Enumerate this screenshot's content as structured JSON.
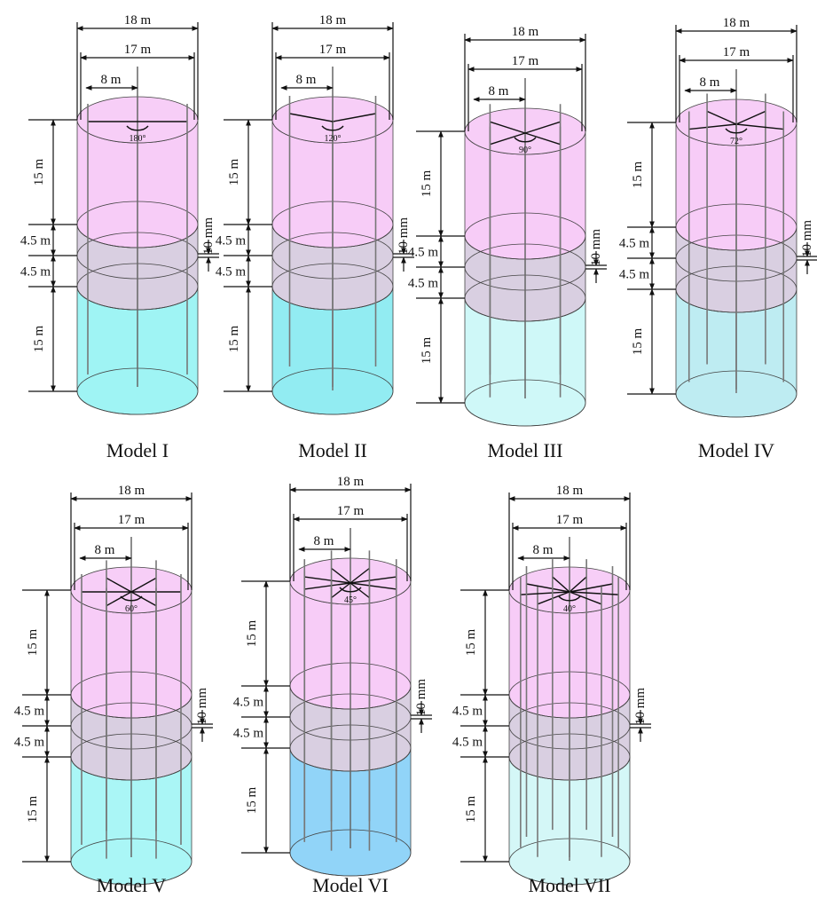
{
  "models": [
    {
      "caption": "Model I",
      "outer_diameter": "18 m",
      "inner_diameter": "17 m",
      "radius": "8 m",
      "angle": "180°",
      "upper_height": "15 m",
      "upper_band": "4.5 m",
      "lower_band": "4.5 m",
      "lower_height": "15 m",
      "gap": "10 mm"
    },
    {
      "caption": "Model II",
      "outer_diameter": "18 m",
      "inner_diameter": "17 m",
      "radius": "8 m",
      "angle": "120°",
      "upper_height": "15 m",
      "upper_band": "4.5 m",
      "lower_band": "4.5 m",
      "lower_height": "15 m",
      "gap": "10 mm"
    },
    {
      "caption": "Model III",
      "outer_diameter": "18 m",
      "inner_diameter": "17 m",
      "radius": "8 m",
      "angle": "90°",
      "upper_height": "15 m",
      "upper_band": "4.5 m",
      "lower_band": "4.5 m",
      "lower_height": "15 m",
      "gap": "10 mm"
    },
    {
      "caption": "Model IV",
      "outer_diameter": "18 m",
      "inner_diameter": "17 m",
      "radius": "8 m",
      "angle": "72°",
      "upper_height": "15 m",
      "upper_band": "4.5 m",
      "lower_band": "4.5 m",
      "lower_height": "15 m",
      "gap": "10 mm"
    },
    {
      "caption": "Model V",
      "outer_diameter": "18 m",
      "inner_diameter": "17 m",
      "radius": "8 m",
      "angle": "60°",
      "upper_height": "15 m",
      "upper_band": "4.5 m",
      "lower_band": "4.5 m",
      "lower_height": "15 m",
      "gap": "10 mm"
    },
    {
      "caption": "Model VI",
      "outer_diameter": "18 m",
      "inner_diameter": "17 m",
      "radius": "8 m",
      "angle": "45°",
      "upper_height": "15 m",
      "upper_band": "4.5 m",
      "lower_band": "4.5 m",
      "lower_height": "15 m",
      "gap": "10 mm"
    },
    {
      "caption": "Model VII",
      "outer_diameter": "18 m",
      "inner_diameter": "17 m",
      "radius": "8 m",
      "angle": "40°",
      "upper_height": "15 m",
      "upper_band": "4.5 m",
      "lower_band": "4.5 m",
      "lower_height": "15 m",
      "gap": "10 mm"
    }
  ]
}
